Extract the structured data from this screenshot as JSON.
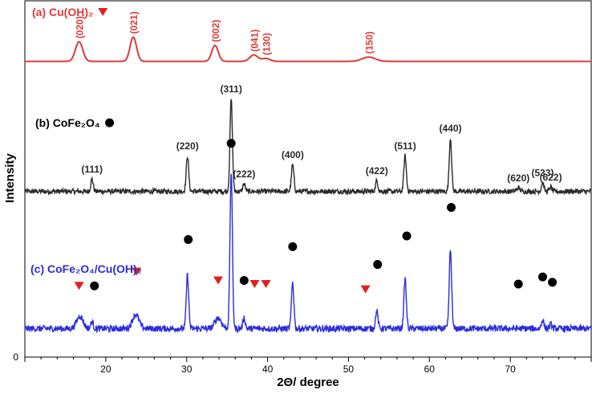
{
  "chart_data": {
    "type": "line",
    "xlabel": "2Θ/ degree",
    "ylabel": "Intensity",
    "xlim": [
      10,
      80
    ],
    "x_ticks": [
      20,
      30,
      40,
      50,
      60,
      70
    ],
    "y_ticks": [
      0
    ],
    "grid": false,
    "series": [
      {
        "name": "(a) Cu(OH)₂",
        "color": "#e03a3a",
        "marker": "triangle-down",
        "baseline": 0.83,
        "noise": 0.0,
        "peaks": [
          {
            "x": 16.7,
            "h": 0.055,
            "w": 0.45,
            "label": "(020)"
          },
          {
            "x": 23.4,
            "h": 0.068,
            "w": 0.4,
            "label": "(021)"
          },
          {
            "x": 33.5,
            "h": 0.045,
            "w": 0.4,
            "label": "(002)"
          },
          {
            "x": 38.3,
            "h": 0.018,
            "w": 0.5,
            "label": "(041)"
          },
          {
            "x": 39.8,
            "h": 0.008,
            "w": 0.5,
            "label": "(130)"
          },
          {
            "x": 52.5,
            "h": 0.012,
            "w": 0.8,
            "label": "(150)"
          }
        ]
      },
      {
        "name": "(b) CoFe₂O₄",
        "color": "#2a2a2a",
        "marker": "circle",
        "baseline": 0.465,
        "noise": 0.007,
        "peaks": [
          {
            "x": 18.3,
            "h": 0.035,
            "w": 0.15,
            "label": "(111)"
          },
          {
            "x": 30.1,
            "h": 0.1,
            "w": 0.15,
            "label": "(220)"
          },
          {
            "x": 35.5,
            "h": 0.26,
            "w": 0.15,
            "label": "(311)"
          },
          {
            "x": 37.1,
            "h": 0.022,
            "w": 0.15,
            "label": "(222)"
          },
          {
            "x": 43.1,
            "h": 0.075,
            "w": 0.15,
            "label": "(400)"
          },
          {
            "x": 53.5,
            "h": 0.03,
            "w": 0.15,
            "label": "(422)"
          },
          {
            "x": 57.0,
            "h": 0.1,
            "w": 0.15,
            "label": "(511)"
          },
          {
            "x": 62.6,
            "h": 0.15,
            "w": 0.15,
            "label": "(440)"
          },
          {
            "x": 71.0,
            "h": 0.01,
            "w": 0.2,
            "label": "(620)"
          },
          {
            "x": 74.0,
            "h": 0.025,
            "w": 0.15,
            "label": "(533)"
          },
          {
            "x": 75.0,
            "h": 0.012,
            "w": 0.15,
            "label": "(622)"
          }
        ]
      },
      {
        "name": "(c) CoFe₂O₄/Cu(OH)₂",
        "color": "#2b2bdc",
        "baseline": 0.08,
        "noise": 0.009,
        "peaks": [
          {
            "x": 16.8,
            "h": 0.035,
            "w": 0.4
          },
          {
            "x": 18.3,
            "h": 0.02,
            "w": 0.15
          },
          {
            "x": 23.7,
            "h": 0.04,
            "w": 0.4
          },
          {
            "x": 30.1,
            "h": 0.15,
            "w": 0.15
          },
          {
            "x": 33.9,
            "h": 0.03,
            "w": 0.4
          },
          {
            "x": 35.5,
            "h": 0.44,
            "w": 0.15
          },
          {
            "x": 37.1,
            "h": 0.03,
            "w": 0.15
          },
          {
            "x": 43.1,
            "h": 0.13,
            "w": 0.15
          },
          {
            "x": 53.5,
            "h": 0.05,
            "w": 0.15
          },
          {
            "x": 57.0,
            "h": 0.14,
            "w": 0.15
          },
          {
            "x": 62.6,
            "h": 0.22,
            "w": 0.15
          },
          {
            "x": 74.0,
            "h": 0.025,
            "w": 0.15
          },
          {
            "x": 75.0,
            "h": 0.012,
            "w": 0.15
          }
        ]
      }
    ],
    "markers": [
      {
        "shape": "triangle",
        "x": 16.7,
        "y": 0.2
      },
      {
        "shape": "circle",
        "x": 18.6,
        "y": 0.2
      },
      {
        "shape": "triangle",
        "x": 23.8,
        "y": 0.24
      },
      {
        "shape": "circle",
        "x": 30.2,
        "y": 0.33
      },
      {
        "shape": "circle",
        "x": 35.5,
        "y": 0.6
      },
      {
        "shape": "triangle",
        "x": 33.9,
        "y": 0.215
      },
      {
        "shape": "circle",
        "x": 37.1,
        "y": 0.215
      },
      {
        "shape": "triangle",
        "x": 38.4,
        "y": 0.205
      },
      {
        "shape": "triangle",
        "x": 39.8,
        "y": 0.205
      },
      {
        "shape": "circle",
        "x": 43.1,
        "y": 0.31
      },
      {
        "shape": "triangle",
        "x": 52.1,
        "y": 0.19
      },
      {
        "shape": "circle",
        "x": 53.6,
        "y": 0.26
      },
      {
        "shape": "circle",
        "x": 57.2,
        "y": 0.34
      },
      {
        "shape": "circle",
        "x": 62.7,
        "y": 0.42
      },
      {
        "shape": "circle",
        "x": 71.0,
        "y": 0.205
      },
      {
        "shape": "circle",
        "x": 74.0,
        "y": 0.225
      },
      {
        "shape": "circle",
        "x": 75.2,
        "y": 0.21
      }
    ]
  }
}
